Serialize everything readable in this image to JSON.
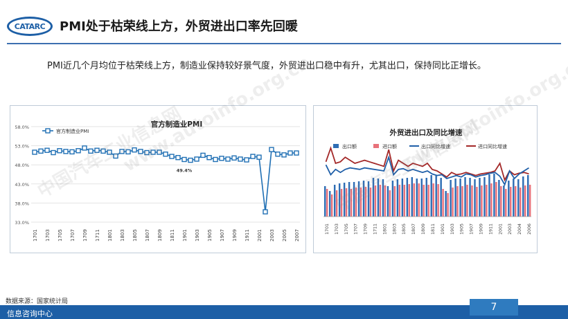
{
  "header": {
    "logo_text": "CATARC",
    "title": "PMI处于枯荣线上方，外贸进出口率先回暖"
  },
  "summary": "PMI近几个月均位于枯荣线上方，制造业保持较好景气度，外贸进出口稳中有升，尤其出口，保持同比正增长。",
  "footer": {
    "source": "数据来源：国家统计局",
    "org": "信息咨询中心",
    "page": "7"
  },
  "watermarks": [
    "中国汽车工业信息网",
    "www.autoinfo.org.cn",
    "中国汽车工业信息网",
    "www.autoinfo.org.cn"
  ],
  "chart_data": [
    {
      "type": "line",
      "title": "官方制造业PMI",
      "series": [
        {
          "name": "官方制造业PMI",
          "color": "#1f6fb4",
          "values": [
            51.3,
            51.6,
            51.8,
            51.2,
            51.7,
            51.5,
            51.4,
            51.7,
            52.4,
            51.6,
            51.8,
            51.6,
            51.3,
            50.3,
            51.5,
            51.4,
            51.9,
            51.5,
            51.2,
            51.3,
            51.3,
            50.8,
            50.2,
            49.9,
            49.4,
            49.2,
            49.5,
            50.5,
            49.9,
            49.4,
            49.7,
            49.5,
            49.8,
            49.5,
            49.3,
            50.2,
            50.0,
            35.7,
            52.0,
            50.8,
            50.6,
            51.1,
            51.1
          ],
          "data_labels": [
            {
              "index": 24,
              "text": "49.4%"
            }
          ]
        }
      ],
      "x_tick_labels": [
        "1701",
        "1703",
        "1705",
        "1707",
        "1709",
        "1711",
        "1801",
        "1803",
        "1805",
        "1807",
        "1809",
        "1811",
        "1901",
        "1903",
        "1905",
        "1907",
        "1909",
        "1911",
        "2001",
        "2003",
        "2005",
        "2007"
      ],
      "y_tick_labels": [
        "33.0%",
        "38.0%",
        "43.0%",
        "48.0%",
        "53.0%",
        "58.0%"
      ],
      "ylim": [
        33,
        58
      ],
      "legend": "top-left"
    },
    {
      "type": "bar",
      "title": "外贸进出口及同比增速",
      "legend_labels": [
        "出口额",
        "进口额",
        "出口同比增速",
        "进口同比增速"
      ],
      "colors": {
        "export_bar": "#2e6db4",
        "import_bar": "#e8717a",
        "export_line": "#1f5fa8",
        "import_line": "#a32828"
      },
      "x_tick_labels": [
        "1701",
        "1703",
        "1705",
        "1707",
        "1709",
        "1711",
        "1801",
        "1803",
        "1805",
        "1807",
        "1809",
        "1811",
        "1901",
        "1903",
        "1905",
        "1907",
        "1909",
        "1911",
        "2001",
        "2003",
        "2004",
        "2006"
      ],
      "export_values": [
        0.44,
        0.37,
        0.46,
        0.48,
        0.49,
        0.5,
        0.5,
        0.51,
        0.52,
        0.51,
        0.56,
        0.55,
        0.54,
        0.44,
        0.52,
        0.54,
        0.55,
        0.56,
        0.57,
        0.55,
        0.55,
        0.56,
        0.6,
        0.59,
        0.56,
        0.37,
        0.53,
        0.55,
        0.55,
        0.57,
        0.56,
        0.54,
        0.56,
        0.57,
        0.61,
        0.62,
        0.53,
        0.45,
        0.52,
        0.55,
        0.54,
        0.58,
        0.6
      ],
      "import_values": [
        0.4,
        0.32,
        0.38,
        0.4,
        0.41,
        0.4,
        0.42,
        0.42,
        0.43,
        0.42,
        0.45,
        0.46,
        0.45,
        0.38,
        0.44,
        0.46,
        0.46,
        0.47,
        0.48,
        0.48,
        0.46,
        0.46,
        0.48,
        0.47,
        0.4,
        0.34,
        0.42,
        0.44,
        0.44,
        0.46,
        0.45,
        0.43,
        0.45,
        0.46,
        0.48,
        0.5,
        0.44,
        0.4,
        0.43,
        0.44,
        0.42,
        0.45,
        0.46
      ],
      "export_growth": [
        0.68,
        0.55,
        0.62,
        0.58,
        0.62,
        0.64,
        0.63,
        0.62,
        0.64,
        0.63,
        0.62,
        0.61,
        0.6,
        0.78,
        0.55,
        0.62,
        0.63,
        0.6,
        0.62,
        0.6,
        0.58,
        0.6,
        0.56,
        0.54,
        0.55,
        0.5,
        0.52,
        0.54,
        0.52,
        0.56,
        0.55,
        0.52,
        0.54,
        0.55,
        0.57,
        0.58,
        0.53,
        0.42,
        0.6,
        0.5,
        0.56,
        0.6,
        0.64
      ],
      "import_growth": [
        0.72,
        0.9,
        0.7,
        0.72,
        0.78,
        0.74,
        0.7,
        0.72,
        0.74,
        0.72,
        0.7,
        0.68,
        0.66,
        0.88,
        0.6,
        0.74,
        0.7,
        0.66,
        0.7,
        0.68,
        0.66,
        0.7,
        0.62,
        0.6,
        0.56,
        0.52,
        0.58,
        0.55,
        0.56,
        0.58,
        0.56,
        0.54,
        0.56,
        0.57,
        0.58,
        0.6,
        0.7,
        0.48,
        0.6,
        0.55,
        0.57,
        0.58,
        0.56
      ]
    }
  ]
}
